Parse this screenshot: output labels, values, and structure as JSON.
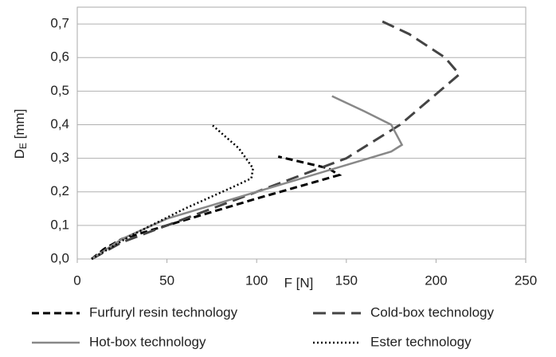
{
  "chart_data": {
    "type": "line",
    "xlabel": "F [N]",
    "ylabel": {
      "main": "D",
      "sub": "E",
      "unit": " [mm]"
    },
    "xlim": [
      0,
      250
    ],
    "xticks": [
      0,
      50,
      100,
      150,
      200,
      250
    ],
    "ylim": [
      0,
      0.75
    ],
    "yticks": [
      {
        "value": 0,
        "label": "0,0"
      },
      {
        "value": 0.1,
        "label": "0,1"
      },
      {
        "value": 0.2,
        "label": "0,2"
      },
      {
        "value": 0.3,
        "label": "0,3"
      },
      {
        "value": 0.4,
        "label": "0,4"
      },
      {
        "value": 0.5,
        "label": "0,5"
      },
      {
        "value": 0.6,
        "label": "0,6"
      },
      {
        "value": 0.7,
        "label": "0,7"
      }
    ],
    "grid": true,
    "legend": "bottom",
    "series": [
      {
        "name": "Furfuryl resin technology",
        "color": "#000000",
        "dash": "9,5",
        "width": 3,
        "x": [
          8,
          15,
          25,
          50,
          100,
          146,
          140,
          112
        ],
        "values": [
          0,
          0.03,
          0.06,
          0.1,
          0.18,
          0.25,
          0.27,
          0.305
        ]
      },
      {
        "name": "Cold-box technology",
        "color": "#444444",
        "dash": "16,8",
        "width": 3,
        "x": [
          8,
          25,
          60,
          100,
          150,
          180,
          213,
          205,
          185,
          167
        ],
        "values": [
          0,
          0.05,
          0.12,
          0.2,
          0.3,
          0.4,
          0.55,
          0.6,
          0.67,
          0.715
        ]
      },
      {
        "name": "Hot-box technology",
        "color": "#888888",
        "dash": "none",
        "width": 2.5,
        "x": [
          8,
          25,
          50,
          100,
          150,
          175,
          181,
          175,
          160,
          142
        ],
        "values": [
          0,
          0.06,
          0.12,
          0.2,
          0.28,
          0.32,
          0.34,
          0.4,
          0.44,
          0.485
        ]
      },
      {
        "name": "Ester technology",
        "color": "#000000",
        "dash": "2,3",
        "width": 2.5,
        "x": [
          8,
          30,
          60,
          85,
          97,
          98,
          90,
          75
        ],
        "values": [
          0,
          0.07,
          0.15,
          0.21,
          0.24,
          0.27,
          0.33,
          0.4
        ]
      }
    ]
  }
}
